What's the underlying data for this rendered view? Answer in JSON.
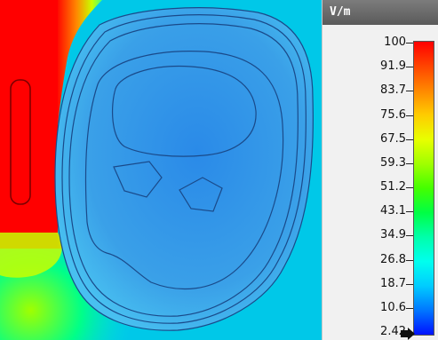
{
  "legend": {
    "unit_label": "V/m",
    "ticks": [
      "100",
      "91.9",
      "83.7",
      "75.6",
      "67.5",
      "59.3",
      "51.2",
      "43.1",
      "34.9",
      "26.8",
      "18.7",
      "10.6",
      "2.42"
    ],
    "gradient_colors": [
      "#ff0000",
      "#ff4400",
      "#ff8800",
      "#ffcc00",
      "#e8ff00",
      "#a0ff00",
      "#44ff00",
      "#00ff44",
      "#00ffaa",
      "#00ffee",
      "#00ccff",
      "#0077ff",
      "#0011ff"
    ]
  },
  "field": {
    "background_color": "#00c8e8",
    "hot_color": "#ff0000",
    "head_color": "#3aa0e8",
    "contour_color": "#1a4a8a"
  }
}
